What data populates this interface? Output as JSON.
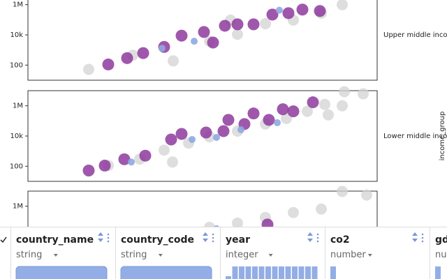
{
  "chart_data": [
    {
      "type": "scatter",
      "facet": "Upper middle income",
      "log_y": true,
      "xlim": [
        0,
        100
      ],
      "ylim": [
        10,
        10000000
      ],
      "yticks": [
        100,
        {
          "value": 10000,
          "label": "10k"
        },
        {
          "value": 1000000,
          "label": "1M"
        }
      ],
      "series": [
        {
          "color": "#d3d3d3",
          "x": [
            17.4,
            30,
            41.6,
            52,
            60,
            68,
            76,
            84,
            90,
            58
          ],
          "values": [
            52,
            450,
            190,
            3800,
            11000,
            55000,
            95000,
            275000,
            1000000,
            95000
          ]
        },
        {
          "color": "#8e3a9d",
          "x": [
            23,
            28.4,
            33,
            39,
            44,
            50.4,
            56.4,
            60,
            64.6,
            70,
            74.6,
            78.6,
            83.6,
            53
          ],
          "values": [
            110,
            290,
            620,
            1600,
            8900,
            15500,
            40000,
            50000,
            50000,
            220000,
            275000,
            470000,
            380000,
            3100
          ]
        },
        {
          "color": "#8fa9e0",
          "x": [
            38.4,
            47.6,
            72
          ],
          "values": [
            1300,
            3800,
            430000
          ]
        }
      ]
    },
    {
      "type": "scatter",
      "facet": "Lower middle income",
      "log_y": true,
      "xlim": [
        0,
        100
      ],
      "ylim": [
        10,
        10000000
      ],
      "yticks": [
        100,
        {
          "value": 10000,
          "label": "10k"
        },
        {
          "value": 1000000,
          "label": "1M"
        }
      ],
      "series": [
        {
          "color": "#d3d3d3",
          "x": [
            23,
            32,
            39,
            41.4,
            46,
            52,
            60,
            68,
            74,
            80,
            85,
            90,
            96,
            90.6,
            86
          ],
          "values": [
            112,
            295,
            1170,
            190,
            3400,
            8900,
            21000,
            62000,
            145000,
            430000,
            1230000,
            1000000,
            6200000,
            8500000,
            250000
          ]
        },
        {
          "color": "#8e3a9d",
          "x": [
            17.4,
            22,
            27.6,
            33.6,
            41,
            44,
            51,
            56,
            57.4,
            62,
            64.6,
            69,
            73,
            81.6,
            76
          ],
          "values": [
            52,
            110,
            290,
            500,
            5900,
            13800,
            17000,
            21000,
            117000,
            62000,
            310000,
            117000,
            590000,
            1700000,
            430000
          ]
        },
        {
          "color": "#8fa9e0",
          "x": [
            29.6,
            47,
            54,
            61,
            71.4
          ],
          "values": [
            190,
            5900,
            8100,
            26000,
            76000
          ]
        }
      ]
    },
    {
      "type": "scatter",
      "log_y": true,
      "xlim": [
        0,
        100
      ],
      "ylim": [
        10,
        10000000
      ],
      "yticks": [
        {
          "value": 1000000,
          "label": "1M"
        }
      ],
      "series": [
        {
          "color": "#d3d3d3",
          "x": [
            90,
            97,
            84,
            76,
            68,
            60,
            52
          ],
          "values": [
            9500000,
            5500000,
            650000,
            380000,
            180000,
            76000,
            40000
          ]
        },
        {
          "color": "#8e3a9d",
          "x": [
            68.6
          ],
          "values": [
            62000
          ]
        },
        {
          "color": "#8fa9e0",
          "x": [
            54
          ],
          "values": [
            32000
          ]
        }
      ]
    }
  ],
  "facet_axis_label": "income_group",
  "table": {
    "columns": [
      {
        "name": "country_name",
        "type": "string"
      },
      {
        "name": "country_code",
        "type": "string"
      },
      {
        "name": "year",
        "type": "integer"
      },
      {
        "name": "co2",
        "type": "number"
      },
      {
        "name": "gdp",
        "type": "number"
      }
    ]
  }
}
